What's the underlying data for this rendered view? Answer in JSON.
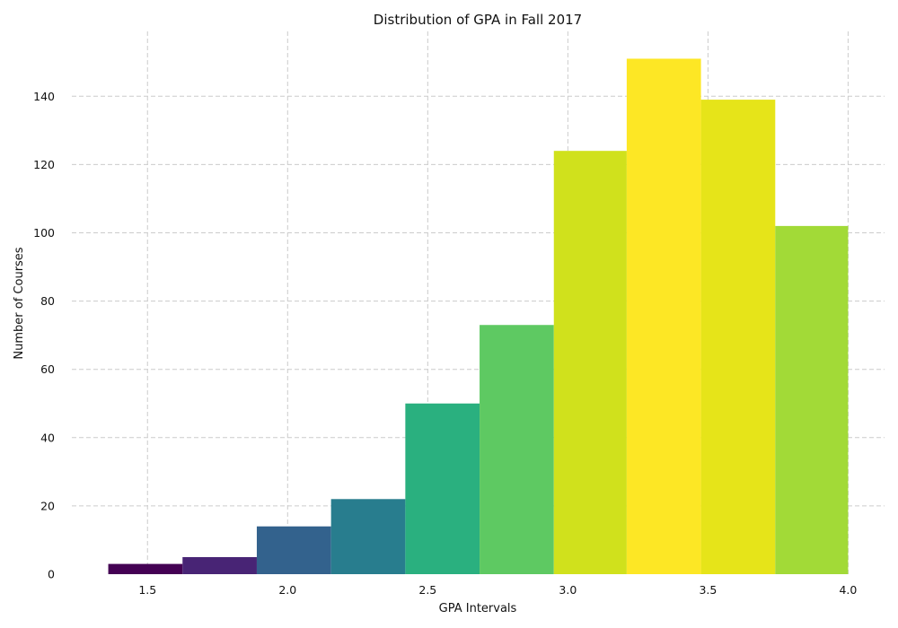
{
  "chart_data": {
    "type": "bar",
    "title": "Distribution of GPA in Fall 2017",
    "xlabel": "GPA Intervals",
    "ylabel": "Number of Courses",
    "bin_edges": [
      1.36,
      1.625,
      1.89,
      2.155,
      2.42,
      2.685,
      2.95,
      3.21,
      3.475,
      3.74,
      4.0
    ],
    "values": [
      3,
      5,
      14,
      22,
      50,
      73,
      124,
      151,
      139,
      102
    ],
    "colors": [
      "#440154",
      "#482475",
      "#33628d",
      "#287d8e",
      "#2ab07f",
      "#5ec962",
      "#d0e11c",
      "#fde725",
      "#e6e419",
      "#a2da37"
    ],
    "xticks": [
      1.5,
      2.0,
      2.5,
      3.0,
      3.5,
      4.0
    ],
    "xtick_labels": [
      "1.5",
      "2.0",
      "2.5",
      "3.0",
      "3.5",
      "4.0"
    ],
    "yticks": [
      0,
      20,
      40,
      60,
      80,
      100,
      120,
      140
    ],
    "ytick_labels": [
      "0",
      "20",
      "40",
      "60",
      "80",
      "100",
      "120",
      "140"
    ],
    "xlim": [
      1.23,
      4.13
    ],
    "ylim": [
      0,
      159
    ],
    "grid": true
  }
}
